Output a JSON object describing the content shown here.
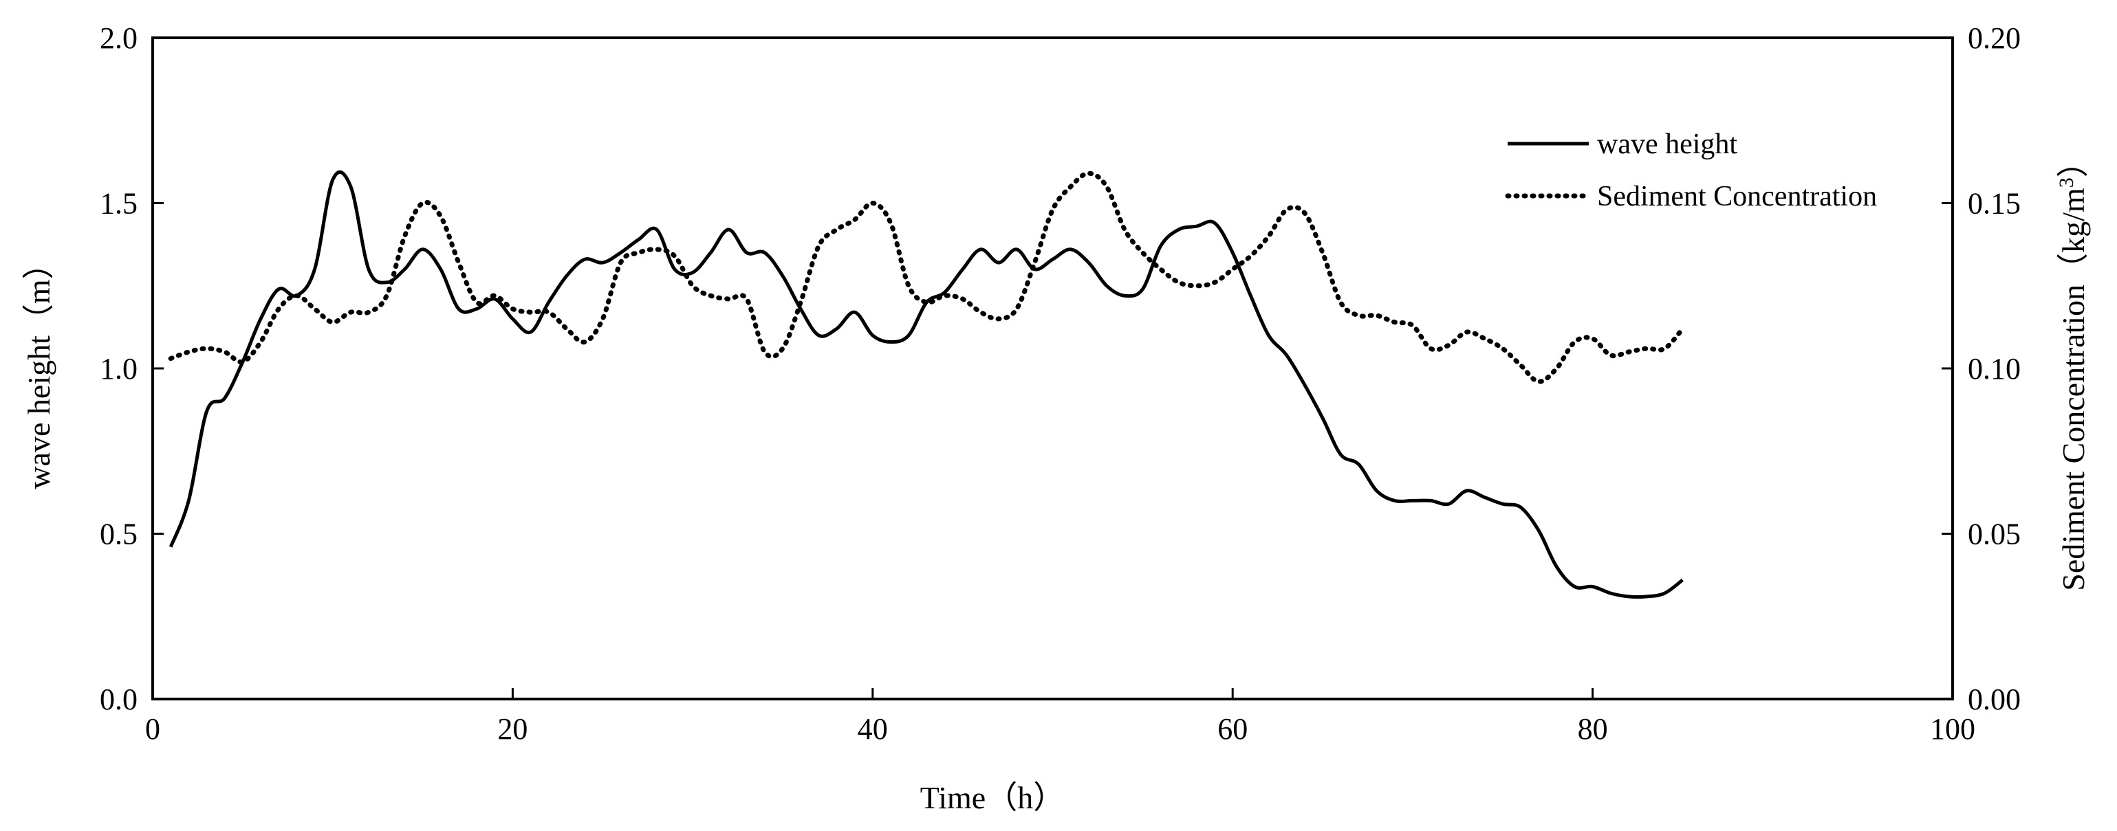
{
  "chart_data": {
    "type": "line",
    "title": "",
    "xlabel": "Time（h）",
    "ylabel": "wave height（m）",
    "y2label": "Sediment Concentration（kg/m",
    "y2label_sup": "3",
    "y2label_end": "）",
    "xlim": [
      0,
      100
    ],
    "ylim": [
      0,
      2.0
    ],
    "y2lim": [
      0,
      0.2
    ],
    "xticks": [
      "0",
      "20",
      "40",
      "60",
      "80",
      "100"
    ],
    "yticks": [
      "0.0",
      "0.5",
      "1.0",
      "1.5",
      "2.0"
    ],
    "y2ticks": [
      "0.00",
      "0.05",
      "0.10",
      "0.15",
      "0.20"
    ],
    "grid": false,
    "legend_position": "top-right",
    "series": [
      {
        "name": "wave height",
        "axis": "left",
        "style": "solid",
        "color": "#000000",
        "points": [
          [
            1,
            0.46
          ],
          [
            2,
            0.6
          ],
          [
            3,
            0.87
          ],
          [
            4,
            0.91
          ],
          [
            5,
            1.02
          ],
          [
            6,
            1.15
          ],
          [
            7,
            1.24
          ],
          [
            8,
            1.22
          ],
          [
            9,
            1.3
          ],
          [
            10,
            1.57
          ],
          [
            11,
            1.55
          ],
          [
            12,
            1.3
          ],
          [
            13,
            1.26
          ],
          [
            14,
            1.3
          ],
          [
            15,
            1.36
          ],
          [
            16,
            1.3
          ],
          [
            17,
            1.18
          ],
          [
            18,
            1.18
          ],
          [
            19,
            1.21
          ],
          [
            20,
            1.15
          ],
          [
            21,
            1.11
          ],
          [
            22,
            1.2
          ],
          [
            23,
            1.28
          ],
          [
            24,
            1.33
          ],
          [
            25,
            1.32
          ],
          [
            26,
            1.35
          ],
          [
            27,
            1.39
          ],
          [
            28,
            1.42
          ],
          [
            29,
            1.3
          ],
          [
            30,
            1.29
          ],
          [
            31,
            1.35
          ],
          [
            32,
            1.42
          ],
          [
            33,
            1.35
          ],
          [
            34,
            1.35
          ],
          [
            35,
            1.28
          ],
          [
            36,
            1.18
          ],
          [
            37,
            1.1
          ],
          [
            38,
            1.12
          ],
          [
            39,
            1.17
          ],
          [
            40,
            1.1
          ],
          [
            41,
            1.08
          ],
          [
            42,
            1.1
          ],
          [
            43,
            1.2
          ],
          [
            44,
            1.23
          ],
          [
            45,
            1.3
          ],
          [
            46,
            1.36
          ],
          [
            47,
            1.32
          ],
          [
            48,
            1.36
          ],
          [
            49,
            1.3
          ],
          [
            50,
            1.33
          ],
          [
            51,
            1.36
          ],
          [
            52,
            1.32
          ],
          [
            53,
            1.25
          ],
          [
            54,
            1.22
          ],
          [
            55,
            1.24
          ],
          [
            56,
            1.37
          ],
          [
            57,
            1.42
          ],
          [
            58,
            1.43
          ],
          [
            59,
            1.44
          ],
          [
            60,
            1.35
          ],
          [
            61,
            1.22
          ],
          [
            62,
            1.1
          ],
          [
            63,
            1.04
          ],
          [
            64,
            0.95
          ],
          [
            65,
            0.85
          ],
          [
            66,
            0.74
          ],
          [
            67,
            0.71
          ],
          [
            68,
            0.63
          ],
          [
            69,
            0.6
          ],
          [
            70,
            0.6
          ],
          [
            71,
            0.6
          ],
          [
            72,
            0.59
          ],
          [
            73,
            0.63
          ],
          [
            74,
            0.61
          ],
          [
            75,
            0.59
          ],
          [
            76,
            0.58
          ],
          [
            77,
            0.51
          ],
          [
            78,
            0.4
          ],
          [
            79,
            0.34
          ],
          [
            80,
            0.34
          ],
          [
            81,
            0.32
          ],
          [
            82,
            0.31
          ],
          [
            83,
            0.31
          ],
          [
            84,
            0.32
          ],
          [
            85,
            0.36
          ]
        ]
      },
      {
        "name": "Sediment Concentration",
        "axis": "right",
        "style": "dotted",
        "color": "#000000",
        "points": [
          [
            1,
            0.103
          ],
          [
            2,
            0.105
          ],
          [
            3,
            0.106
          ],
          [
            4,
            0.105
          ],
          [
            5,
            0.102
          ],
          [
            6,
            0.108
          ],
          [
            7,
            0.118
          ],
          [
            8,
            0.122
          ],
          [
            9,
            0.118
          ],
          [
            10,
            0.114
          ],
          [
            11,
            0.117
          ],
          [
            12,
            0.117
          ],
          [
            13,
            0.122
          ],
          [
            14,
            0.14
          ],
          [
            15,
            0.15
          ],
          [
            16,
            0.146
          ],
          [
            17,
            0.132
          ],
          [
            18,
            0.12
          ],
          [
            19,
            0.122
          ],
          [
            20,
            0.118
          ],
          [
            21,
            0.117
          ],
          [
            22,
            0.117
          ],
          [
            23,
            0.112
          ],
          [
            24,
            0.108
          ],
          [
            25,
            0.115
          ],
          [
            26,
            0.132
          ],
          [
            27,
            0.135
          ],
          [
            28,
            0.136
          ],
          [
            29,
            0.134
          ],
          [
            30,
            0.125
          ],
          [
            31,
            0.122
          ],
          [
            32,
            0.121
          ],
          [
            33,
            0.121
          ],
          [
            34,
            0.105
          ],
          [
            35,
            0.106
          ],
          [
            36,
            0.12
          ],
          [
            37,
            0.137
          ],
          [
            38,
            0.142
          ],
          [
            39,
            0.145
          ],
          [
            40,
            0.15
          ],
          [
            41,
            0.144
          ],
          [
            42,
            0.125
          ],
          [
            43,
            0.12
          ],
          [
            44,
            0.122
          ],
          [
            45,
            0.121
          ],
          [
            46,
            0.117
          ],
          [
            47,
            0.115
          ],
          [
            48,
            0.118
          ],
          [
            49,
            0.132
          ],
          [
            50,
            0.148
          ],
          [
            51,
            0.155
          ],
          [
            52,
            0.159
          ],
          [
            53,
            0.155
          ],
          [
            54,
            0.142
          ],
          [
            55,
            0.135
          ],
          [
            56,
            0.13
          ],
          [
            57,
            0.126
          ],
          [
            58,
            0.125
          ],
          [
            59,
            0.126
          ],
          [
            60,
            0.13
          ],
          [
            61,
            0.134
          ],
          [
            62,
            0.14
          ],
          [
            63,
            0.148
          ],
          [
            64,
            0.147
          ],
          [
            65,
            0.135
          ],
          [
            66,
            0.12
          ],
          [
            67,
            0.116
          ],
          [
            68,
            0.116
          ],
          [
            69,
            0.114
          ],
          [
            70,
            0.113
          ],
          [
            71,
            0.106
          ],
          [
            72,
            0.107
          ],
          [
            73,
            0.111
          ],
          [
            74,
            0.109
          ],
          [
            75,
            0.106
          ],
          [
            76,
            0.101
          ],
          [
            77,
            0.096
          ],
          [
            78,
            0.1
          ],
          [
            79,
            0.108
          ],
          [
            80,
            0.109
          ],
          [
            81,
            0.104
          ],
          [
            82,
            0.105
          ],
          [
            83,
            0.106
          ],
          [
            84,
            0.106
          ],
          [
            85,
            0.112
          ]
        ]
      }
    ]
  }
}
